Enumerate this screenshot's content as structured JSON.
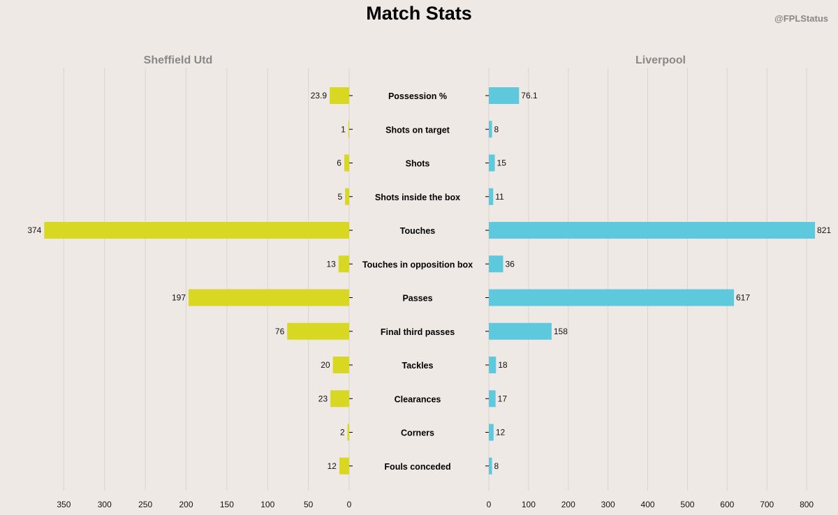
{
  "title": "Match Stats",
  "handle": "@FPLStatus",
  "chart_data": {
    "type": "bar",
    "orientation": "horizontal-diverging",
    "categories": [
      "Possession %",
      "Shots on target",
      "Shots",
      "Shots inside the box",
      "Touches",
      "Touches in opposition box",
      "Passes",
      "Final third passes",
      "Tackles",
      "Clearances",
      "Corners",
      "Fouls conceded"
    ],
    "series": [
      {
        "name": "Sheffield Utd",
        "color": "#d8d823",
        "values": [
          23.9,
          1,
          6,
          5,
          374,
          13,
          197,
          76,
          20,
          23,
          2,
          12
        ],
        "value_labels": [
          "23.9",
          "1",
          "6",
          "5",
          "374",
          "13",
          "197",
          "76",
          "20",
          "23",
          "2",
          "12"
        ],
        "xlim": [
          0,
          400
        ],
        "ticks": [
          0,
          50,
          100,
          150,
          200,
          250,
          300,
          350
        ],
        "direction": "reversed"
      },
      {
        "name": "Liverpool",
        "color": "#5ec8dc",
        "values": [
          76.1,
          8,
          15,
          11,
          821,
          36,
          617,
          158,
          18,
          17,
          12,
          8
        ],
        "value_labels": [
          "76.1",
          "8",
          "15",
          "11",
          "821",
          "36",
          "617",
          "158",
          "18",
          "17",
          "12",
          "8"
        ],
        "xlim": [
          0,
          835
        ],
        "ticks": [
          0,
          100,
          200,
          300,
          400,
          500,
          600,
          700,
          800
        ],
        "direction": "normal"
      }
    ],
    "grid": true,
    "gridline_color": "#d9d4d0"
  }
}
